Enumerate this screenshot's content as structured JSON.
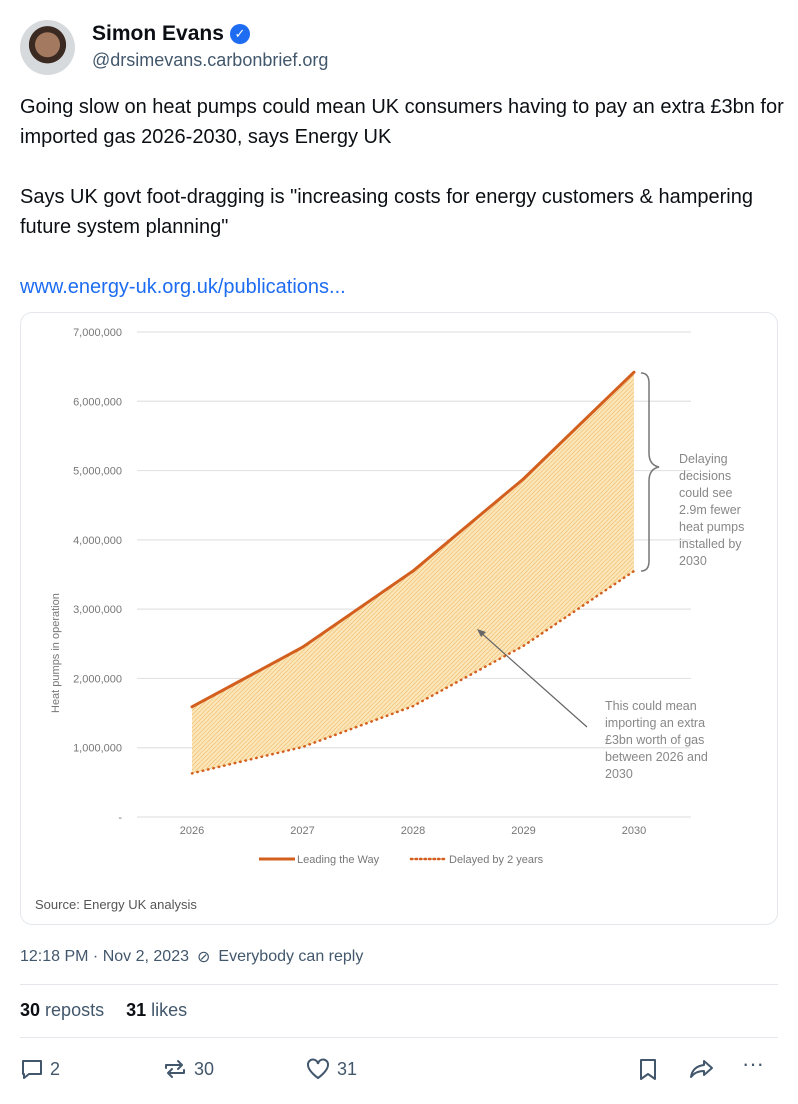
{
  "author": {
    "name": "Simon Evans",
    "handle": "@drsimevans.carbonbrief.org",
    "verified": true
  },
  "post": {
    "paragraphs": [
      "Going slow on heat pumps could mean UK consumers having to pay an extra £3bn for imported gas 2026-2030, says Energy UK",
      "Says UK govt foot-dragging is \"increasing costs for energy customers & hampering future system planning\""
    ],
    "link": "www.energy-uk.org.uk/publications..."
  },
  "chart_data": {
    "type": "line",
    "x": [
      2026,
      2027,
      2028,
      2029,
      2030
    ],
    "series": [
      {
        "name": "Leading the Way",
        "values": [
          1590000,
          2450000,
          3550000,
          4880000,
          6420000
        ],
        "color": "#d35f1f",
        "style": "solid"
      },
      {
        "name": "Delayed by 2 years",
        "values": [
          630000,
          1010000,
          1600000,
          2470000,
          3550000
        ],
        "color": "#d35f1f",
        "style": "dotted"
      }
    ],
    "ylabel": "Heat pumps in operation",
    "ylim": [
      0,
      7000000
    ],
    "yticks": [
      "-",
      "1,000,000",
      "2,000,000",
      "3,000,000",
      "4,000,000",
      "5,000,000",
      "6,000,000",
      "7,000,000"
    ],
    "xticks": [
      "2026",
      "2027",
      "2028",
      "2029",
      "2030"
    ],
    "grid": true,
    "legend": "bottom",
    "fill_between_color": "#f5c26b",
    "annotations": [
      [
        "Delaying",
        "decisions",
        "could see",
        "2.9m fewer",
        "heat pumps",
        "installed by",
        "2030"
      ],
      [
        "This could mean",
        "importing  an extra",
        "£3bn worth  of gas",
        "between  2026 and",
        "2030"
      ]
    ],
    "source": "Source: Energy UK analysis"
  },
  "meta": {
    "time": "12:18 PM · Nov 2, 2023",
    "reply_setting": "Everybody can reply"
  },
  "stats": {
    "reposts_count": "30",
    "reposts_label": "reposts",
    "likes_count": "31",
    "likes_label": "likes"
  },
  "actions": {
    "replies": "2",
    "reposts": "30",
    "likes": "31"
  }
}
